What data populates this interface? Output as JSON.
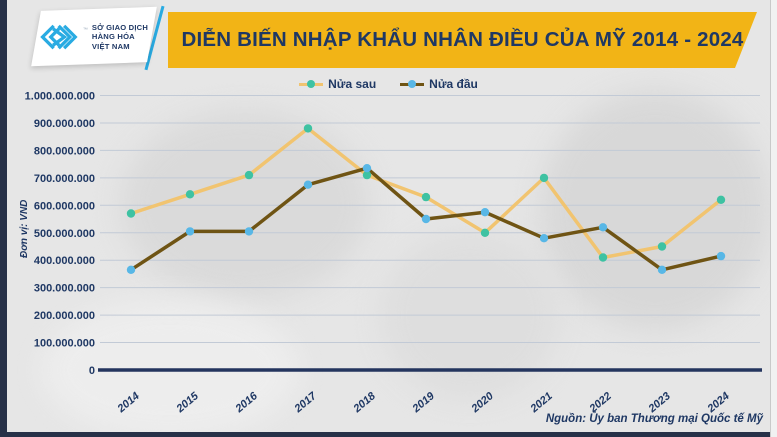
{
  "header": {
    "logo": {
      "org_lines": [
        "SỞ GIAO DỊCH",
        "HÀNG HÓA",
        "VIỆT NAM"
      ],
      "trademark": "™"
    },
    "title": "DIỄN BIẾN NHẬP KHẨU NHÂN ĐIỀU CỦA MỸ 2014 - 2024"
  },
  "legend": [
    {
      "label": "Nửa sau",
      "line_color": "#f1c470",
      "marker_color": "#3ec2a2"
    },
    {
      "label": "Nửa đầu",
      "line_color": "#6f5414",
      "marker_color": "#58b7e6"
    }
  ],
  "chart_data": {
    "type": "line",
    "title": "DIỄN BIẾN NHẬP KHẨU NHÂN ĐIỀU CỦA MỸ 2014 - 2024",
    "unit_label": "Đơn vị: VND",
    "categories": [
      "2014",
      "2015",
      "2016",
      "2017",
      "2018",
      "2019",
      "2020",
      "2021",
      "2022",
      "2023",
      "2024"
    ],
    "series": [
      {
        "name": "Nửa sau",
        "color": "#f1c470",
        "marker_color": "#3ec2a2",
        "values": [
          570000000,
          640000000,
          710000000,
          880000000,
          710000000,
          630000000,
          500000000,
          700000000,
          410000000,
          450000000,
          620000000
        ]
      },
      {
        "name": "Nửa đầu",
        "color": "#6f5414",
        "marker_color": "#58b7e6",
        "values": [
          365000000,
          505000000,
          505000000,
          675000000,
          735000000,
          550000000,
          575000000,
          480000000,
          520000000,
          365000000,
          415000000
        ]
      }
    ],
    "ylim": [
      0,
      1000000000
    ],
    "y_ticks": [
      "0",
      "100.000.000",
      "200.000.000",
      "300.000.000",
      "400.000.000",
      "500.000.000",
      "600.000.000",
      "700.000.000",
      "800.000.000",
      "900.000.000",
      "1.000.000.000"
    ],
    "grid": true,
    "legend_position": "top"
  },
  "footer": {
    "source": "Nguồn: Ủy ban Thương mại Quốc tế Mỹ"
  },
  "colors": {
    "banner_gold": "#f2b416",
    "navy_text": "#1f3864",
    "frame_navy": "#273148",
    "logo_cyan": "#29abe2",
    "grid_line": "#c2cad6",
    "axis_navy": "#24355e",
    "background": "#e6e6e6"
  }
}
